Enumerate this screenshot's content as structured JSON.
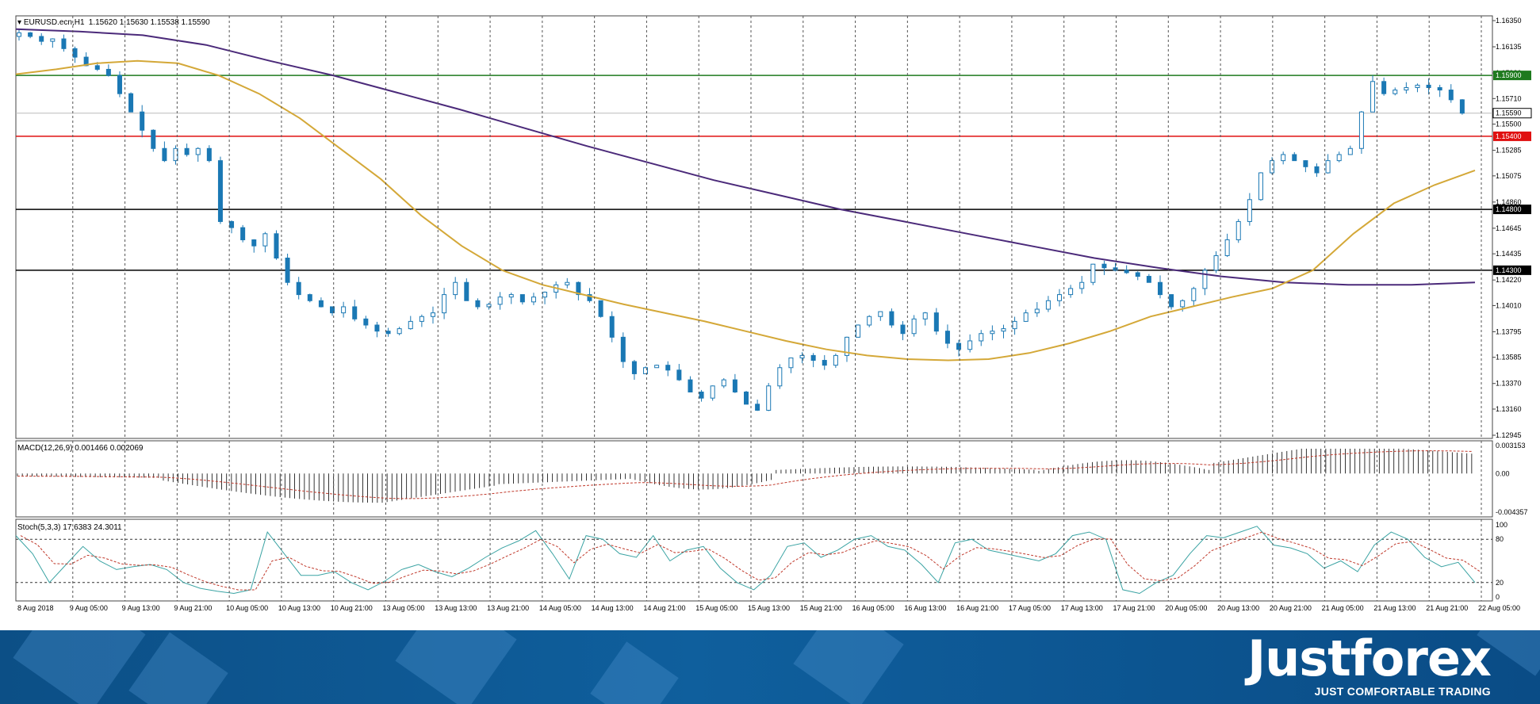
{
  "header": {
    "symbol": "EURUSD.ecn,H1",
    "ohlc": "1.15620 1.15630 1.15538 1.15590"
  },
  "indicators": {
    "macd_label": "MACD(12,26,9) 0.001466 0.002069",
    "stoch_label": "Stoch(5,3,3) 17.6383 24.3011"
  },
  "brand": {
    "name": "Justforex",
    "tagline": "JUST COMFORTABLE TRADING"
  },
  "colors": {
    "candle": "#1a78b4",
    "ma_fast": "#d4a838",
    "ma_slow": "#4b2a7a",
    "level_green": "#1e7a1e",
    "level_red": "#e01010",
    "level_black": "#000000",
    "macd_signal": "#c0392b",
    "stoch_main": "#3aa3a3",
    "stoch_signal": "#c0392b"
  },
  "chart_data": {
    "type": "candlestick",
    "price_ticks": [
      "1.16350",
      "1.16135",
      "1.15920",
      "1.15710",
      "1.15500",
      "1.15285",
      "1.15075",
      "1.14860",
      "1.14645",
      "1.14435",
      "1.14220",
      "1.14010",
      "1.13795",
      "1.13585",
      "1.13370",
      "1.13160",
      "1.12945"
    ],
    "price_range": [
      1.12945,
      1.1635
    ],
    "levels": [
      {
        "price": 1.159,
        "label": "1.15900",
        "color": "#1e7a1e"
      },
      {
        "price": 1.154,
        "label": "1.15400",
        "color": "#e01010"
      },
      {
        "price": 1.148,
        "label": "1.14800",
        "color": "#000000"
      },
      {
        "price": 1.143,
        "label": "1.14300",
        "color": "#000000"
      }
    ],
    "current_price": {
      "price": 1.1559,
      "label": "1.15590"
    },
    "time_labels": [
      "8 Aug 2018",
      "9 Aug 05:00",
      "9 Aug 13:00",
      "9 Aug 21:00",
      "10 Aug 05:00",
      "10 Aug 13:00",
      "10 Aug 21:00",
      "13 Aug 05:00",
      "13 Aug 13:00",
      "13 Aug 21:00",
      "14 Aug 05:00",
      "14 Aug 13:00",
      "14 Aug 21:00",
      "15 Aug 05:00",
      "15 Aug 13:00",
      "15 Aug 21:00",
      "16 Aug 05:00",
      "16 Aug 13:00",
      "16 Aug 21:00",
      "17 Aug 05:00",
      "17 Aug 13:00",
      "17 Aug 21:00",
      "20 Aug 05:00",
      "20 Aug 13:00",
      "20 Aug 21:00",
      "21 Aug 05:00",
      "21 Aug 13:00",
      "21 Aug 21:00",
      "22 Aug 05:00"
    ],
    "close_path": [
      1.1625,
      1.1622,
      1.1618,
      1.162,
      1.1612,
      1.1605,
      1.1598,
      1.1595,
      1.159,
      1.1575,
      1.156,
      1.1545,
      1.153,
      1.152,
      1.153,
      1.1525,
      1.153,
      1.152,
      1.147,
      1.1465,
      1.1455,
      1.145,
      1.146,
      1.144,
      1.142,
      1.141,
      1.1405,
      1.14,
      1.1395,
      1.14,
      1.139,
      1.1385,
      1.138,
      1.1378,
      1.1382,
      1.1388,
      1.1392,
      1.1395,
      1.141,
      1.142,
      1.1405,
      1.14,
      1.1402,
      1.1408,
      1.141,
      1.1404,
      1.1408,
      1.1412,
      1.1418,
      1.142,
      1.141,
      1.1405,
      1.1392,
      1.1375,
      1.1355,
      1.1345,
      1.135,
      1.1352,
      1.1348,
      1.134,
      1.133,
      1.1325,
      1.1335,
      1.134,
      1.133,
      1.132,
      1.1315,
      1.1335,
      1.135,
      1.1358,
      1.136,
      1.1356,
      1.1352,
      1.136,
      1.1375,
      1.1385,
      1.1392,
      1.1396,
      1.1385,
      1.1378,
      1.139,
      1.1395,
      1.138,
      1.137,
      1.1365,
      1.1372,
      1.1378,
      1.138,
      1.1382,
      1.1388,
      1.1395,
      1.1398,
      1.1405,
      1.141,
      1.1415,
      1.142,
      1.1435,
      1.1432,
      1.143,
      1.1428,
      1.1425,
      1.142,
      1.141,
      1.14,
      1.1405,
      1.1415,
      1.143,
      1.1442,
      1.1455,
      1.147,
      1.1488,
      1.151,
      1.152,
      1.1525,
      1.152,
      1.1515,
      1.151,
      1.152,
      1.1525,
      1.153,
      1.156,
      1.1585,
      1.1575,
      1.1578,
      1.158,
      1.1582,
      1.158,
      1.1578,
      1.157,
      1.1559
    ],
    "ma_fast_path": [
      1.1591,
      1.1595,
      1.16,
      1.1602,
      1.16,
      1.159,
      1.1575,
      1.1555,
      1.153,
      1.1505,
      1.1475,
      1.145,
      1.143,
      1.1418,
      1.141,
      1.1402,
      1.1395,
      1.1388,
      1.138,
      1.1372,
      1.1365,
      1.136,
      1.1357,
      1.1356,
      1.1357,
      1.1362,
      1.137,
      1.138,
      1.1392,
      1.14,
      1.1408,
      1.1415,
      1.143,
      1.146,
      1.1485,
      1.15,
      1.1512
    ],
    "ma_slow_path": [
      1.1628,
      1.1626,
      1.1623,
      1.1615,
      1.1602,
      1.159,
      1.1576,
      1.1562,
      1.1547,
      1.1532,
      1.1518,
      1.1504,
      1.1492,
      1.148,
      1.147,
      1.146,
      1.145,
      1.144,
      1.1432,
      1.1425,
      1.142,
      1.1418,
      1.1418,
      1.142
    ],
    "macd_ticks": [
      "0.003153",
      "0.00",
      "-0.004357"
    ],
    "macd_range": [
      -0.004357,
      0.003153
    ],
    "stoch_ticks": [
      "100",
      "80",
      "20",
      "0"
    ],
    "stoch_levels": [
      80,
      20
    ],
    "stoch_path": [
      85,
      60,
      20,
      45,
      70,
      50,
      38,
      42,
      45,
      38,
      20,
      12,
      8,
      5,
      10,
      90,
      60,
      30,
      30,
      35,
      20,
      10,
      22,
      38,
      45,
      35,
      28,
      40,
      55,
      68,
      78,
      92,
      60,
      25,
      85,
      80,
      60,
      55,
      85,
      50,
      65,
      70,
      40,
      20,
      10,
      30,
      70,
      75,
      55,
      65,
      80,
      85,
      70,
      65,
      45,
      20,
      75,
      80,
      65,
      60,
      55,
      50,
      60,
      85,
      90,
      80,
      10,
      5,
      20,
      30,
      60,
      85,
      82,
      90,
      98,
      72,
      68,
      60,
      40,
      50,
      35,
      72,
      90,
      80,
      55,
      42,
      48,
      20
    ]
  }
}
